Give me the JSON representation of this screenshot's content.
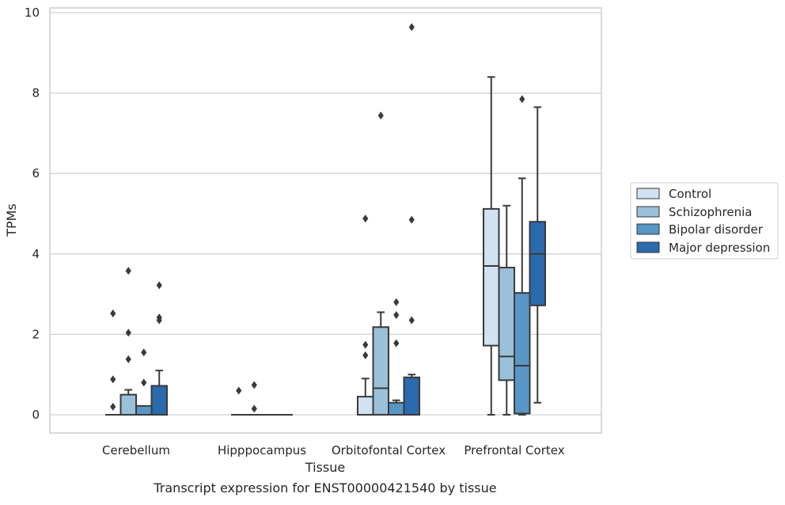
{
  "chart_data": {
    "type": "boxplot",
    "caption": "Transcript expression for ENST00000421540 by tissue",
    "xlabel": "Tissue",
    "ylabel": "TPMs",
    "ylim": [
      -0.45,
      10.1
    ],
    "yticks": [
      0,
      2,
      4,
      6,
      8,
      10
    ],
    "grid": true,
    "legend_position": "right",
    "categories": [
      "Cerebellum",
      "Hipppocampus",
      "Orbitofontal Cortex",
      "Prefrontal Cortex"
    ],
    "series": [
      {
        "name": "Control",
        "color": "#d1e2f2",
        "boxes": [
          {
            "q1": 0,
            "median": 0,
            "q3": 0,
            "whislo": 0,
            "whishi": 0,
            "fliers": [
              0.2,
              0.88,
              2.52
            ]
          },
          {
            "q1": 0,
            "median": 0,
            "q3": 0,
            "whislo": 0,
            "whishi": 0,
            "fliers": [
              0.6
            ]
          },
          {
            "q1": 0,
            "median": 0,
            "q3": 0.45,
            "whislo": 0,
            "whishi": 0.9,
            "fliers": [
              1.48,
              1.74,
              4.88
            ]
          },
          {
            "q1": 1.72,
            "median": 3.7,
            "q3": 5.12,
            "whislo": 0,
            "whishi": 8.4,
            "fliers": []
          }
        ]
      },
      {
        "name": "Schizophrenia",
        "color": "#9ac0da",
        "boxes": [
          {
            "q1": 0,
            "median": 0,
            "q3": 0.5,
            "whislo": 0,
            "whishi": 0.62,
            "fliers": [
              1.38,
              2.04,
              3.58
            ]
          },
          {
            "q1": 0,
            "median": 0,
            "q3": 0,
            "whislo": 0,
            "whishi": 0,
            "fliers": [
              0.15,
              0.74
            ]
          },
          {
            "q1": 0,
            "median": 0.66,
            "q3": 2.18,
            "whislo": 0,
            "whishi": 2.55,
            "fliers": [
              7.44
            ]
          },
          {
            "q1": 0.86,
            "median": 1.45,
            "q3": 3.66,
            "whislo": 0,
            "whishi": 5.2,
            "fliers": []
          }
        ]
      },
      {
        "name": "Bipolar disorder",
        "color": "#5896c6",
        "boxes": [
          {
            "q1": 0,
            "median": 0,
            "q3": 0.22,
            "whislo": 0,
            "whishi": 0.22,
            "fliers": [
              0.8,
              1.55
            ]
          },
          {
            "q1": 0,
            "median": 0,
            "q3": 0,
            "whislo": 0,
            "whishi": 0,
            "fliers": []
          },
          {
            "q1": 0,
            "median": 0,
            "q3": 0.3,
            "whislo": 0,
            "whishi": 0.36,
            "fliers": [
              1.78,
              2.48,
              2.8
            ]
          },
          {
            "q1": 0.03,
            "median": 1.22,
            "q3": 3.03,
            "whislo": 0,
            "whishi": 5.88,
            "fliers": [
              7.85
            ]
          }
        ]
      },
      {
        "name": "Major depression",
        "color": "#2a6aad",
        "boxes": [
          {
            "q1": 0,
            "median": 0,
            "q3": 0.72,
            "whislo": 0,
            "whishi": 1.1,
            "fliers": [
              2.35,
              2.42,
              3.22
            ]
          },
          {
            "q1": 0,
            "median": 0,
            "q3": 0,
            "whislo": 0,
            "whishi": 0,
            "fliers": []
          },
          {
            "q1": 0,
            "median": 0,
            "q3": 0.93,
            "whislo": 0,
            "whishi": 1.0,
            "fliers": [
              2.35,
              4.85,
              9.64
            ]
          },
          {
            "q1": 2.72,
            "median": 4.0,
            "q3": 4.8,
            "whislo": 0.3,
            "whishi": 7.65,
            "fliers": []
          }
        ]
      }
    ]
  }
}
